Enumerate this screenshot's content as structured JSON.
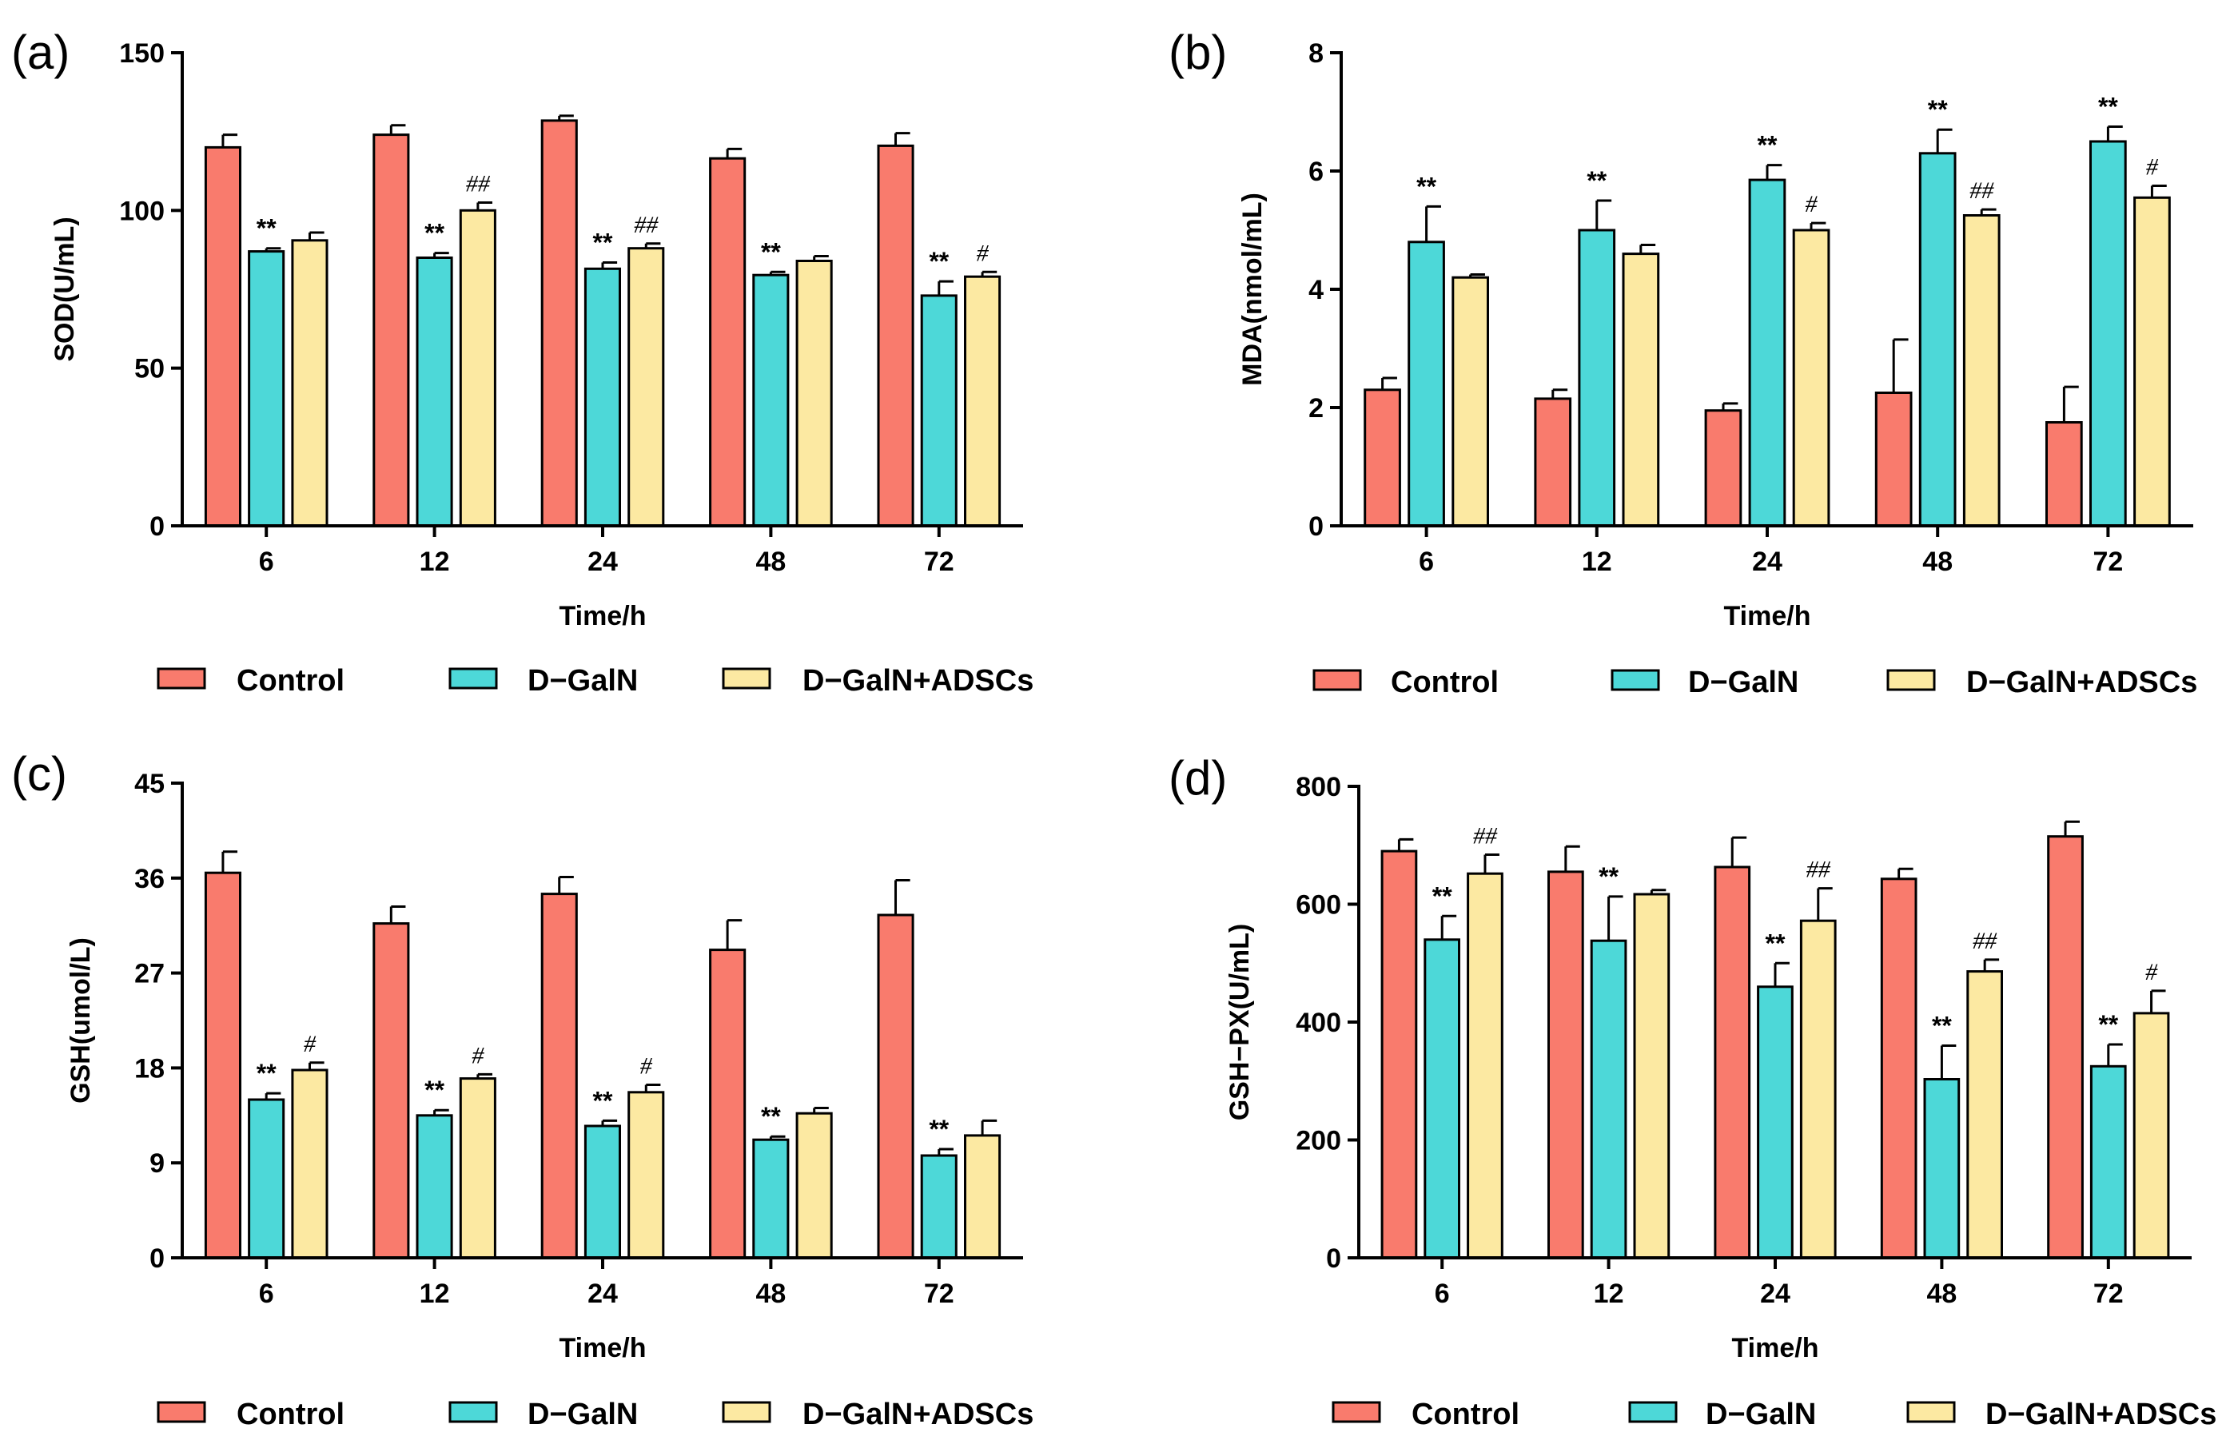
{
  "colors": {
    "control": "#F97B6D",
    "dgaln": "#4DD8D8",
    "dgaln_adscs": "#FCE9A2",
    "stroke": "#000000"
  },
  "chart_data": [
    {
      "type": "bar",
      "panel_label": "(a)",
      "title": "",
      "xlabel": "Time/h",
      "ylabel": "SOD(U/mL)",
      "categories": [
        "6",
        "12",
        "24",
        "48",
        "72"
      ],
      "ylim": [
        0,
        150
      ],
      "yticks": [
        0,
        50,
        100,
        150
      ],
      "series": [
        {
          "name": "Control",
          "values": [
            120,
            124,
            128.5,
            116.5,
            120.5
          ],
          "errors": [
            4,
            3,
            1.5,
            3,
            4
          ],
          "annotations": [
            "",
            "",
            "",
            "",
            ""
          ]
        },
        {
          "name": "D−GalN",
          "values": [
            87,
            85,
            81.5,
            79.5,
            73
          ],
          "errors": [
            1,
            1.5,
            2,
            1,
            4.5
          ],
          "annotations": [
            "**",
            "**",
            "**",
            "**",
            "**"
          ]
        },
        {
          "name": "D−GalN+ADSCs",
          "values": [
            90.5,
            100,
            88,
            84,
            79
          ],
          "errors": [
            2.5,
            2.5,
            1.5,
            1.5,
            1.5
          ],
          "annotations": [
            "",
            "##",
            "##",
            "",
            "#"
          ]
        }
      ]
    },
    {
      "type": "bar",
      "panel_label": "(b)",
      "title": "",
      "xlabel": "Time/h",
      "ylabel": "MDA(nmol/mL)",
      "categories": [
        "6",
        "12",
        "24",
        "48",
        "72"
      ],
      "ylim": [
        0,
        8
      ],
      "yticks": [
        0,
        2,
        4,
        6,
        8
      ],
      "series": [
        {
          "name": "Control",
          "values": [
            2.3,
            2.15,
            1.95,
            2.25,
            1.75
          ],
          "errors": [
            0.2,
            0.15,
            0.12,
            0.9,
            0.6
          ],
          "annotations": [
            "",
            "",
            "",
            "",
            ""
          ]
        },
        {
          "name": "D−GalN",
          "values": [
            4.8,
            5.0,
            5.85,
            6.3,
            6.5
          ],
          "errors": [
            0.6,
            0.5,
            0.25,
            0.4,
            0.25
          ],
          "annotations": [
            "**",
            "**",
            "**",
            "**",
            "**"
          ]
        },
        {
          "name": "D−GalN+ADSCs",
          "values": [
            4.2,
            4.6,
            5.0,
            5.25,
            5.55
          ],
          "errors": [
            0.05,
            0.15,
            0.12,
            0.1,
            0.2
          ],
          "annotations": [
            "",
            "",
            "#",
            "##",
            "#"
          ]
        }
      ]
    },
    {
      "type": "bar",
      "panel_label": "(c)",
      "title": "",
      "xlabel": "Time/h",
      "ylabel": "GSH(umol/L)",
      "categories": [
        "6",
        "12",
        "24",
        "48",
        "72"
      ],
      "ylim": [
        0,
        45
      ],
      "yticks": [
        0,
        9,
        18,
        27,
        36,
        45
      ],
      "series": [
        {
          "name": "Control",
          "values": [
            36.5,
            31.7,
            34.5,
            29.2,
            32.5
          ],
          "errors": [
            2,
            1.6,
            1.6,
            2.8,
            3.3
          ],
          "annotations": [
            "",
            "",
            "",
            "",
            ""
          ]
        },
        {
          "name": "D−GalN",
          "values": [
            15,
            13.5,
            12.5,
            11.2,
            9.7
          ],
          "errors": [
            0.6,
            0.5,
            0.5,
            0.3,
            0.6
          ],
          "annotations": [
            "**",
            "**",
            "**",
            "**",
            "**"
          ]
        },
        {
          "name": "D−GalN+ADSCs",
          "values": [
            17.8,
            17,
            15.7,
            13.7,
            11.6
          ],
          "errors": [
            0.7,
            0.4,
            0.7,
            0.5,
            1.4
          ],
          "annotations": [
            "#",
            "#",
            "#",
            "",
            ""
          ]
        }
      ]
    },
    {
      "type": "bar",
      "panel_label": "(d)",
      "title": "",
      "xlabel": "Time/h",
      "ylabel": "GSH−PX(U/mL)",
      "categories": [
        "6",
        "12",
        "24",
        "48",
        "72"
      ],
      "ylim": [
        0,
        800
      ],
      "yticks": [
        0,
        200,
        400,
        600,
        800
      ],
      "series": [
        {
          "name": "Control",
          "values": [
            690,
            655,
            663,
            643,
            715
          ],
          "errors": [
            20,
            43,
            50,
            17,
            25
          ],
          "annotations": [
            "",
            "",
            "",
            "",
            ""
          ]
        },
        {
          "name": "D−GalN",
          "values": [
            540,
            538,
            460,
            303,
            325
          ],
          "errors": [
            40,
            75,
            40,
            57,
            37
          ],
          "annotations": [
            "**",
            "**",
            "**",
            "**",
            "**"
          ]
        },
        {
          "name": "D−GalN+ADSCs",
          "values": [
            652,
            617,
            572,
            486,
            415
          ],
          "errors": [
            32,
            7,
            55,
            20,
            38
          ],
          "annotations": [
            "##",
            "",
            "##",
            "##",
            "#"
          ]
        }
      ]
    }
  ]
}
